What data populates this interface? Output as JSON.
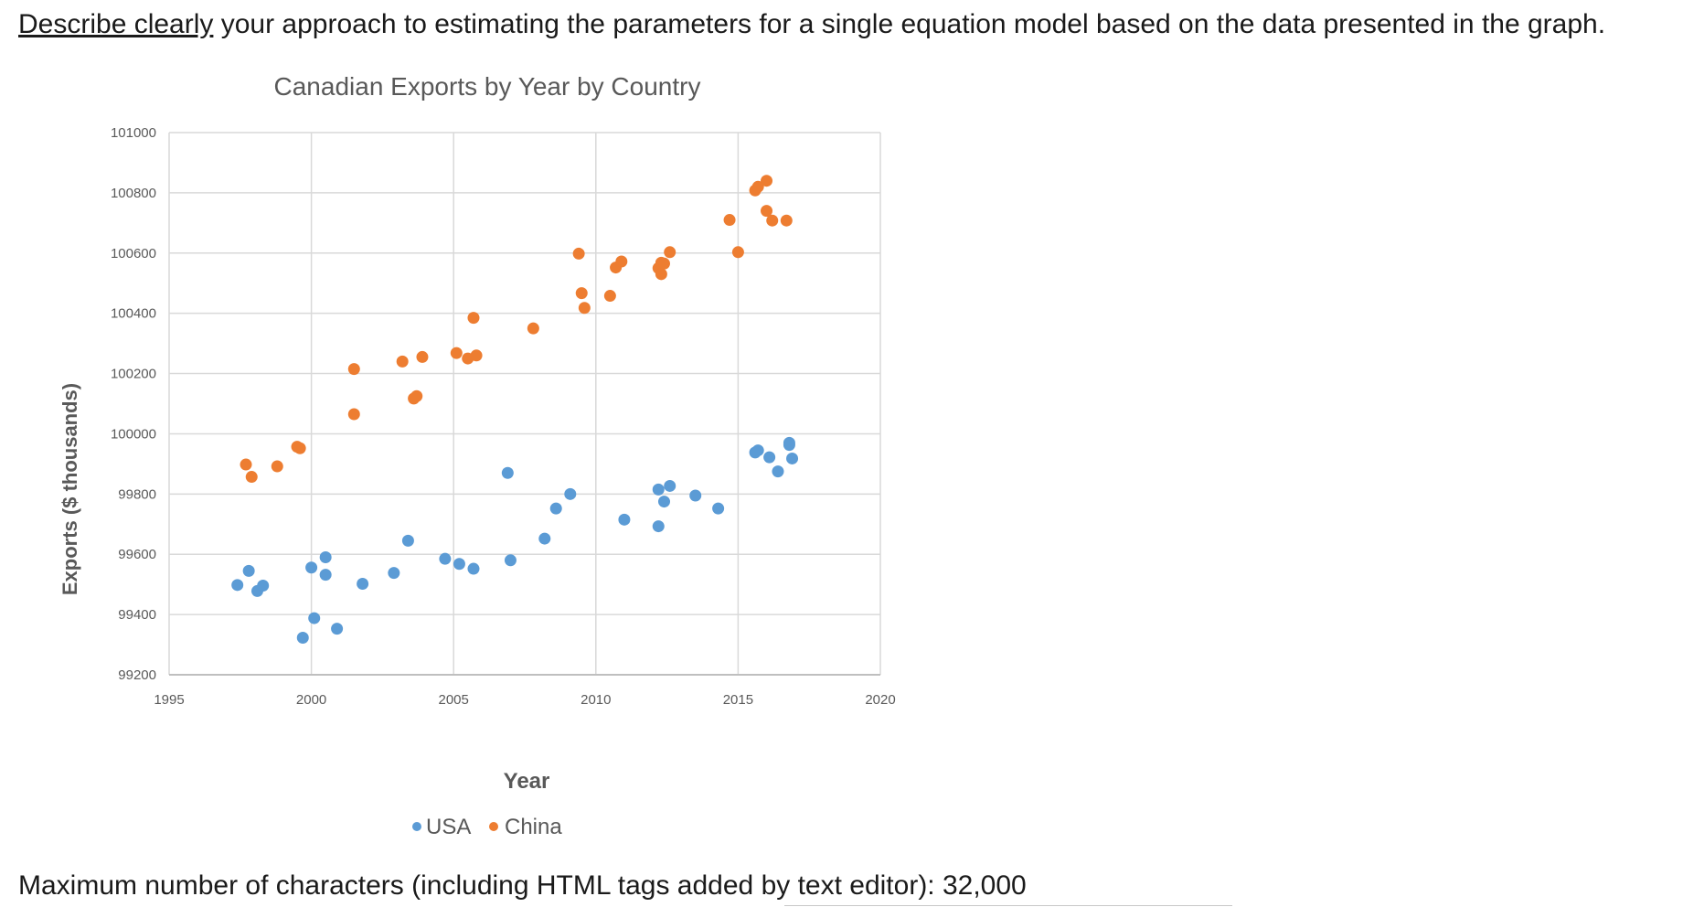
{
  "question": {
    "emphasis": "Describe clearly",
    "rest": " your approach to estimating the parameters for a single equation model based on the data presented in the graph."
  },
  "footer": {
    "max_chars_text": "Maximum number of characters (including HTML tags added by text editor): 32,000"
  },
  "colors": {
    "usa": "#5b9bd5",
    "china": "#ed7d31",
    "title": "#595959",
    "axis_text": "#595959",
    "gridline": "#d9d9d9"
  },
  "chart_data": {
    "type": "scatter",
    "title": "Canadian Exports by Year by Country",
    "xlabel": "Year",
    "ylabel": "Exports ($ thousands)",
    "xlim": [
      1995,
      2020
    ],
    "ylim": [
      99200,
      101000
    ],
    "xticks": [
      "1995",
      "2000",
      "2005",
      "2010",
      "2015",
      "2020"
    ],
    "yticks": [
      "99200",
      "99400",
      "99600",
      "99800",
      "100000",
      "100200",
      "100400",
      "100600",
      "100800",
      "101000"
    ],
    "grid": true,
    "legend_position": "bottom",
    "series": [
      {
        "name": "USA",
        "color": "#5b9bd5",
        "points": [
          [
            1997.4,
            99498
          ],
          [
            1997.8,
            99545
          ],
          [
            1998.1,
            99478
          ],
          [
            1998.3,
            99496
          ],
          [
            1999.7,
            99323
          ],
          [
            2000.0,
            99556
          ],
          [
            2000.1,
            99388
          ],
          [
            2000.5,
            99590
          ],
          [
            2000.5,
            99532
          ],
          [
            2000.9,
            99353
          ],
          [
            2001.8,
            99502
          ],
          [
            2002.9,
            99538
          ],
          [
            2003.4,
            99645
          ],
          [
            2004.7,
            99585
          ],
          [
            2005.2,
            99568
          ],
          [
            2005.7,
            99552
          ],
          [
            2006.9,
            99870
          ],
          [
            2007.0,
            99580
          ],
          [
            2008.2,
            99652
          ],
          [
            2008.6,
            99752
          ],
          [
            2009.1,
            99800
          ],
          [
            2011.0,
            99715
          ],
          [
            2012.2,
            99815
          ],
          [
            2012.2,
            99693
          ],
          [
            2012.4,
            99775
          ],
          [
            2012.6,
            99827
          ],
          [
            2013.5,
            99795
          ],
          [
            2014.3,
            99752
          ],
          [
            2015.6,
            99938
          ],
          [
            2015.7,
            99945
          ],
          [
            2016.1,
            99922
          ],
          [
            2016.4,
            99875
          ],
          [
            2016.8,
            99963
          ],
          [
            2016.8,
            99970
          ],
          [
            2016.9,
            99918
          ]
        ]
      },
      {
        "name": "China",
        "color": "#ed7d31",
        "points": [
          [
            1997.7,
            99898
          ],
          [
            1997.9,
            99857
          ],
          [
            1998.8,
            99892
          ],
          [
            1999.5,
            99957
          ],
          [
            1999.6,
            99952
          ],
          [
            2001.5,
            100065
          ],
          [
            2001.5,
            100215
          ],
          [
            2003.2,
            100240
          ],
          [
            2003.6,
            100117
          ],
          [
            2003.7,
            100125
          ],
          [
            2003.9,
            100255
          ],
          [
            2005.1,
            100268
          ],
          [
            2005.5,
            100250
          ],
          [
            2005.7,
            100385
          ],
          [
            2005.8,
            100260
          ],
          [
            2007.8,
            100350
          ],
          [
            2009.4,
            100598
          ],
          [
            2009.5,
            100467
          ],
          [
            2009.6,
            100418
          ],
          [
            2010.5,
            100458
          ],
          [
            2010.7,
            100552
          ],
          [
            2010.9,
            100572
          ],
          [
            2012.2,
            100550
          ],
          [
            2012.3,
            100568
          ],
          [
            2012.3,
            100530
          ],
          [
            2012.4,
            100565
          ],
          [
            2012.6,
            100603
          ],
          [
            2014.7,
            100710
          ],
          [
            2015.0,
            100603
          ],
          [
            2015.6,
            100808
          ],
          [
            2015.7,
            100820
          ],
          [
            2016.0,
            100840
          ],
          [
            2016.0,
            100740
          ],
          [
            2016.2,
            100708
          ],
          [
            2016.7,
            100708
          ]
        ]
      }
    ]
  }
}
